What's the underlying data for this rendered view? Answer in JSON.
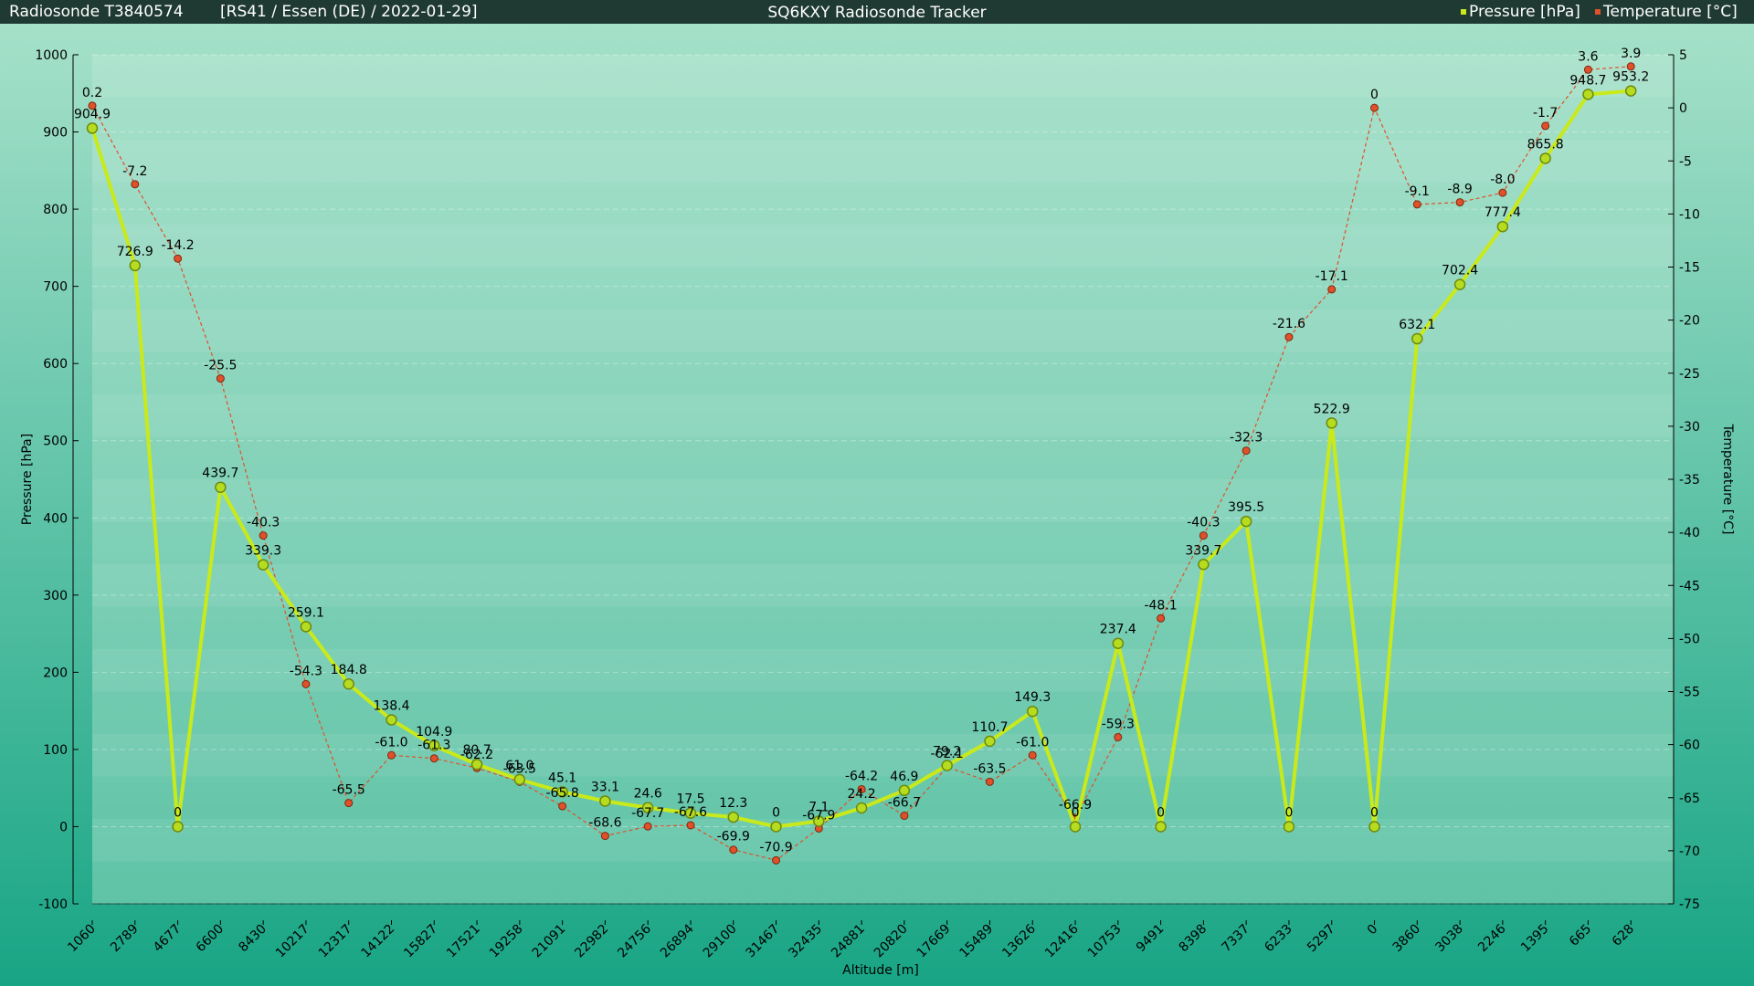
{
  "header": {
    "left_title": "Radiosonde T3840574",
    "subtitle": "[RS41 / Essen (DE) / 2022-01-29]",
    "center_title": "SQ6KXY Radiosonde Tracker"
  },
  "colors": {
    "pressure": "#c9ea1a",
    "temperature": "#e0502a",
    "header_bg": "#1f3a32"
  },
  "chart_data": {
    "type": "line",
    "title": "SQ6KXY Radiosonde Tracker",
    "xlabel": "Altitude [m]",
    "ylabel": "Pressure [hPa]",
    "y2label": "Temperature [°C]",
    "ylim": [
      -100,
      1000
    ],
    "y2lim": [
      -75,
      5
    ],
    "yticks": [
      -100,
      0,
      100,
      200,
      300,
      400,
      500,
      600,
      700,
      800,
      900,
      1000
    ],
    "y2ticks": [
      -75,
      -70,
      -65,
      -60,
      -55,
      -50,
      -45,
      -40,
      -35,
      -30,
      -25,
      -20,
      -15,
      -10,
      -5,
      0,
      5
    ],
    "legend_position": "top-right",
    "categories": [
      "1060",
      "2789",
      "4677",
      "6600",
      "8430",
      "10217",
      "12317",
      "14122",
      "15827",
      "17521",
      "19258",
      "21091",
      "22982",
      "24756",
      "26894",
      "29100",
      "31467",
      "32435",
      "24881",
      "20820",
      "17669",
      "15489",
      "13626",
      "12416",
      "10753",
      "9491",
      "8398",
      "7337",
      "6233",
      "5297",
      "0",
      "3860",
      "3038",
      "2246",
      "1395",
      "665",
      "628"
    ],
    "series": [
      {
        "name": "Pressure [hPa]",
        "axis": "left",
        "values": [
          904.9,
          726.9,
          0,
          439.7,
          339.3,
          259.1,
          184.8,
          138.4,
          104.9,
          80.7,
          61.0,
          45.1,
          33.1,
          24.6,
          17.5,
          12.3,
          0,
          7.1,
          24.2,
          46.9,
          79.2,
          110.7,
          149.3,
          0,
          237.4,
          0,
          339.7,
          395.5,
          0,
          522.9,
          0,
          632.1,
          702.4,
          777.4,
          865.8,
          948.7,
          953.2
        ]
      },
      {
        "name": "Temperature [°C]",
        "axis": "right",
        "values": [
          0.2,
          -7.2,
          -14.2,
          -25.5,
          -40.3,
          -54.3,
          -65.5,
          -61.0,
          -61.3,
          -62.2,
          -63.5,
          -65.8,
          -68.6,
          -67.7,
          -67.6,
          -69.9,
          -70.9,
          -67.9,
          -64.2,
          -66.7,
          -62.1,
          -63.5,
          -61.0,
          -66.9,
          -59.3,
          -48.1,
          -40.3,
          -32.3,
          -21.6,
          -17.1,
          0,
          -9.1,
          -8.9,
          -8.0,
          -1.7,
          3.6,
          3.9
        ]
      }
    ]
  }
}
